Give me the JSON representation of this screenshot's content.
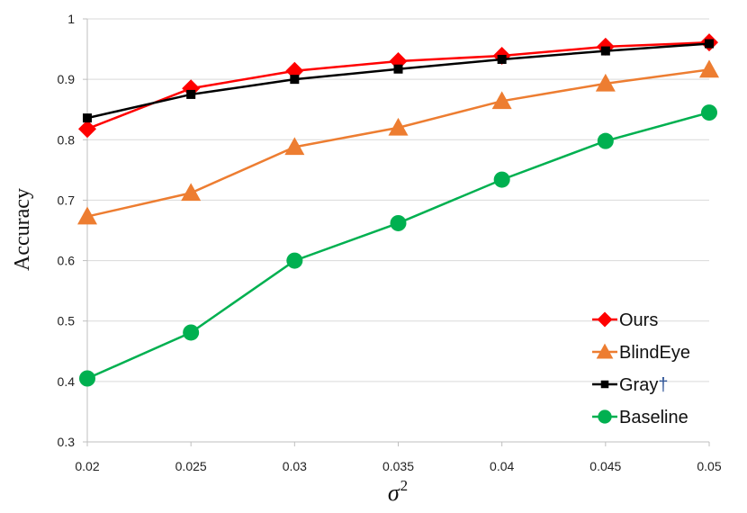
{
  "chart_data": {
    "type": "line",
    "title": "",
    "xlabel": "σ",
    "xlabel_superscript": "2",
    "ylabel": "Accuracy",
    "x": [
      0.02,
      0.025,
      0.03,
      0.035,
      0.04,
      0.045,
      0.05
    ],
    "x_tick_labels": [
      "0.02",
      "0.025",
      "0.03",
      "0.035",
      "0.04",
      "0.045",
      "0.05"
    ],
    "y_tick_labels": [
      "0.3",
      "0.4",
      "0.5",
      "0.6",
      "0.7",
      "0.8",
      "0.9",
      "1"
    ],
    "ylim": [
      0.3,
      1.0
    ],
    "grid": "horizontal",
    "legend_position": "bottom-right",
    "series": [
      {
        "name": "Ours",
        "values": [
          0.818,
          0.885,
          0.914,
          0.93,
          0.939,
          0.954,
          0.961
        ],
        "color": "#ff0000",
        "marker": "diamond"
      },
      {
        "name": "BlindEye",
        "values": [
          0.673,
          0.712,
          0.788,
          0.82,
          0.864,
          0.893,
          0.916
        ],
        "color": "#ed7d31",
        "marker": "triangle"
      },
      {
        "name": "Gray†",
        "values": [
          0.836,
          0.875,
          0.9,
          0.917,
          0.933,
          0.947,
          0.959
        ],
        "color": "#000000",
        "marker": "square"
      },
      {
        "name": "Baseline",
        "values": [
          0.405,
          0.481,
          0.6,
          0.662,
          0.734,
          0.798,
          0.845
        ],
        "color": "#00b050",
        "marker": "circle"
      }
    ]
  }
}
